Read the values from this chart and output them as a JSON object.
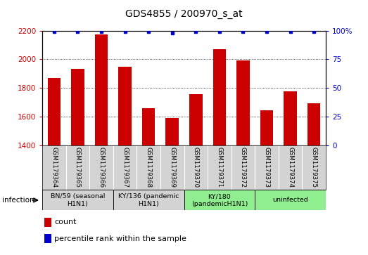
{
  "title": "GDS4855 / 200970_s_at",
  "samples": [
    "GSM1179364",
    "GSM1179365",
    "GSM1179366",
    "GSM1179367",
    "GSM1179368",
    "GSM1179369",
    "GSM1179370",
    "GSM1179371",
    "GSM1179372",
    "GSM1179373",
    "GSM1179374",
    "GSM1179375"
  ],
  "counts": [
    1870,
    1935,
    2175,
    1950,
    1660,
    1590,
    1755,
    2070,
    1990,
    1645,
    1775,
    1695
  ],
  "percentiles": [
    99,
    99,
    99,
    99,
    99,
    98,
    99,
    99,
    99,
    99,
    99,
    99
  ],
  "ylim_left": [
    1400,
    2200
  ],
  "ylim_right": [
    0,
    100
  ],
  "yticks_left": [
    1400,
    1600,
    1800,
    2000,
    2200
  ],
  "yticks_right": [
    0,
    25,
    50,
    75,
    100
  ],
  "bar_color": "#cc0000",
  "dot_color": "#0000cc",
  "bg_color": "#ffffff",
  "groups": [
    {
      "label": "BN/59 (seasonal\nH1N1)",
      "start": 0,
      "end": 3,
      "color": "#d3d3d3"
    },
    {
      "label": "KY/136 (pandemic\nH1N1)",
      "start": 3,
      "end": 6,
      "color": "#90ee90"
    },
    {
      "label": "KY/180\n(pandemicH1N1)",
      "start": 6,
      "end": 9,
      "color": "#90ee90"
    },
    {
      "label": "uninfected",
      "start": 9,
      "end": 12,
      "color": "#90ee90"
    }
  ],
  "infection_label": "infection",
  "legend_count_label": "count",
  "legend_pct_label": "percentile rank within the sample"
}
